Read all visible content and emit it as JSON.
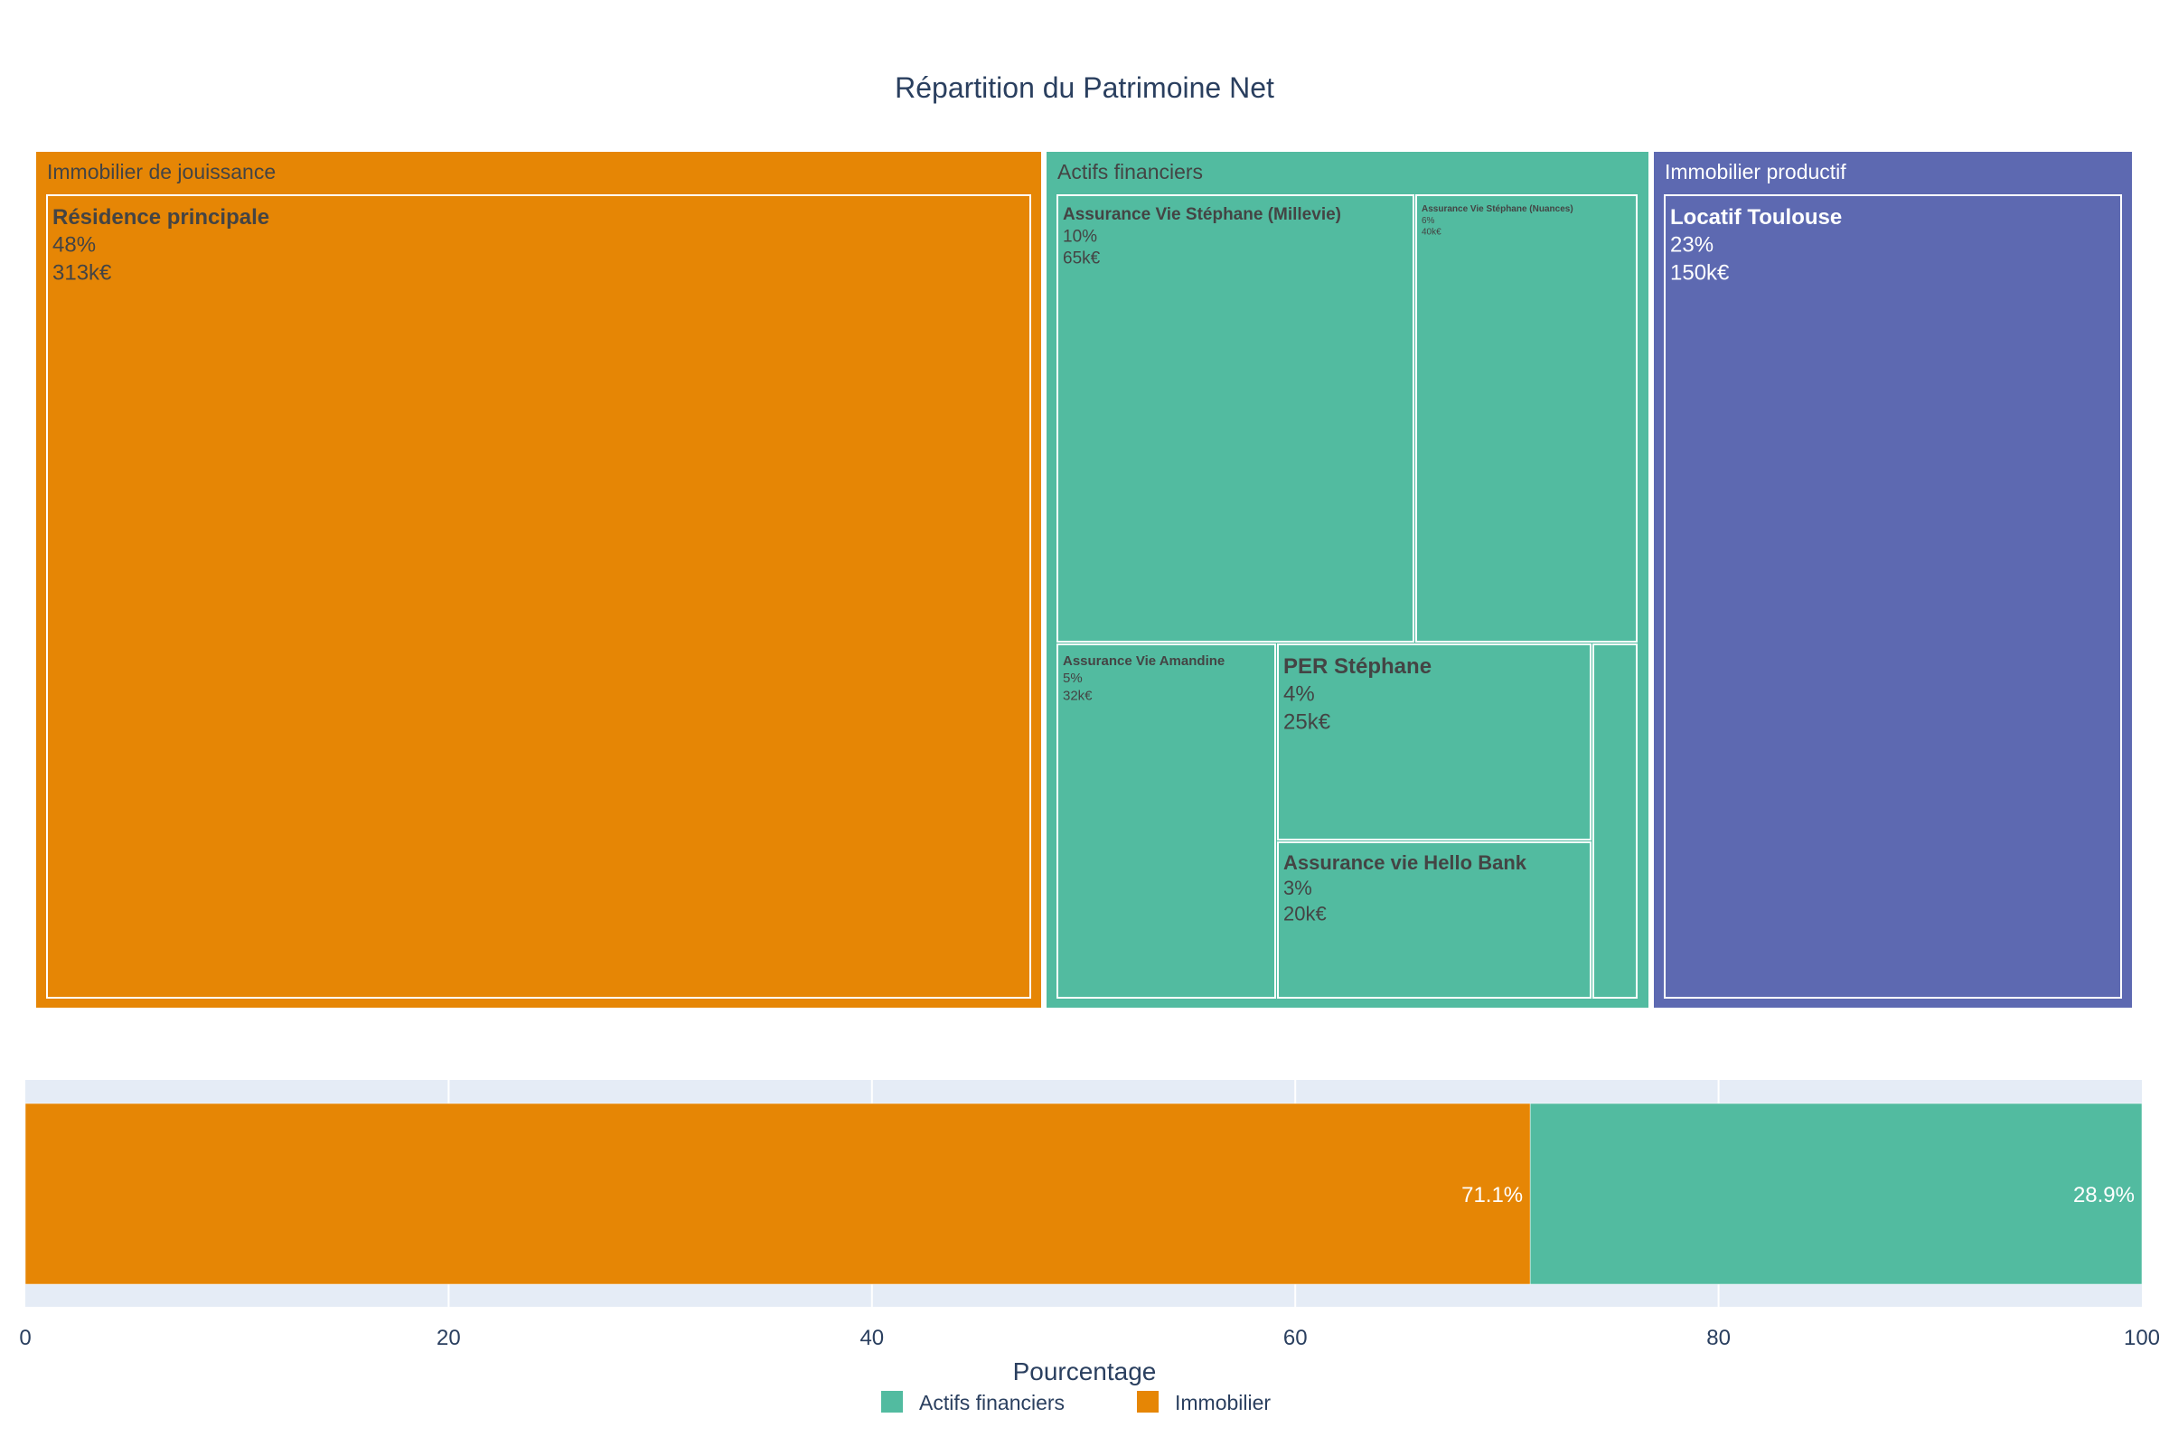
{
  "chart_data": [
    {
      "type": "treemap",
      "title": "Répartition du Patrimoine Net",
      "groups": [
        {
          "name": "Immobilier de jouissance",
          "color": "#E68605",
          "items": [
            {
              "name": "Résidence principale",
              "pct": "48%",
              "value": "313k€"
            }
          ]
        },
        {
          "name": "Actifs financiers",
          "color": "#52BBA0",
          "items": [
            {
              "name": "Assurance Vie Stéphane (Millevie)",
              "pct": "10%",
              "value": "65k€"
            },
            {
              "name": "Assurance Vie Stéphane (Nuances)",
              "pct": "6%",
              "value": "40k€"
            },
            {
              "name": "Assurance Vie Amandine",
              "pct": "5%",
              "value": "32k€"
            },
            {
              "name": "PER Stéphane",
              "pct": "4%",
              "value": "25k€"
            },
            {
              "name": "Assurance vie Hello Bank",
              "pct": "3%",
              "value": "20k€"
            },
            {
              "name": "",
              "pct": "",
              "value": ""
            }
          ]
        },
        {
          "name": "Immobilier productif",
          "color": "#5D69B1",
          "items": [
            {
              "name": "Locatif Toulouse",
              "pct": "23%",
              "value": "150k€"
            }
          ]
        }
      ]
    },
    {
      "type": "bar",
      "orientation": "horizontal",
      "stacked": true,
      "xlabel": "Pourcentage",
      "xlim": [
        0,
        100
      ],
      "xticks": [
        0,
        20,
        40,
        60,
        80,
        100
      ],
      "grid": true,
      "legend_position": "bottom",
      "series": [
        {
          "name": "Immobilier",
          "value": 71.1,
          "label": "71.1%",
          "color": "#E68605"
        },
        {
          "name": "Actifs financiers",
          "value": 28.9,
          "label": "28.9%",
          "color": "#52BBA0"
        }
      ],
      "legend": [
        {
          "name": "Actifs financiers",
          "color": "#52BBA0"
        },
        {
          "name": "Immobilier",
          "color": "#E68605"
        }
      ]
    }
  ]
}
